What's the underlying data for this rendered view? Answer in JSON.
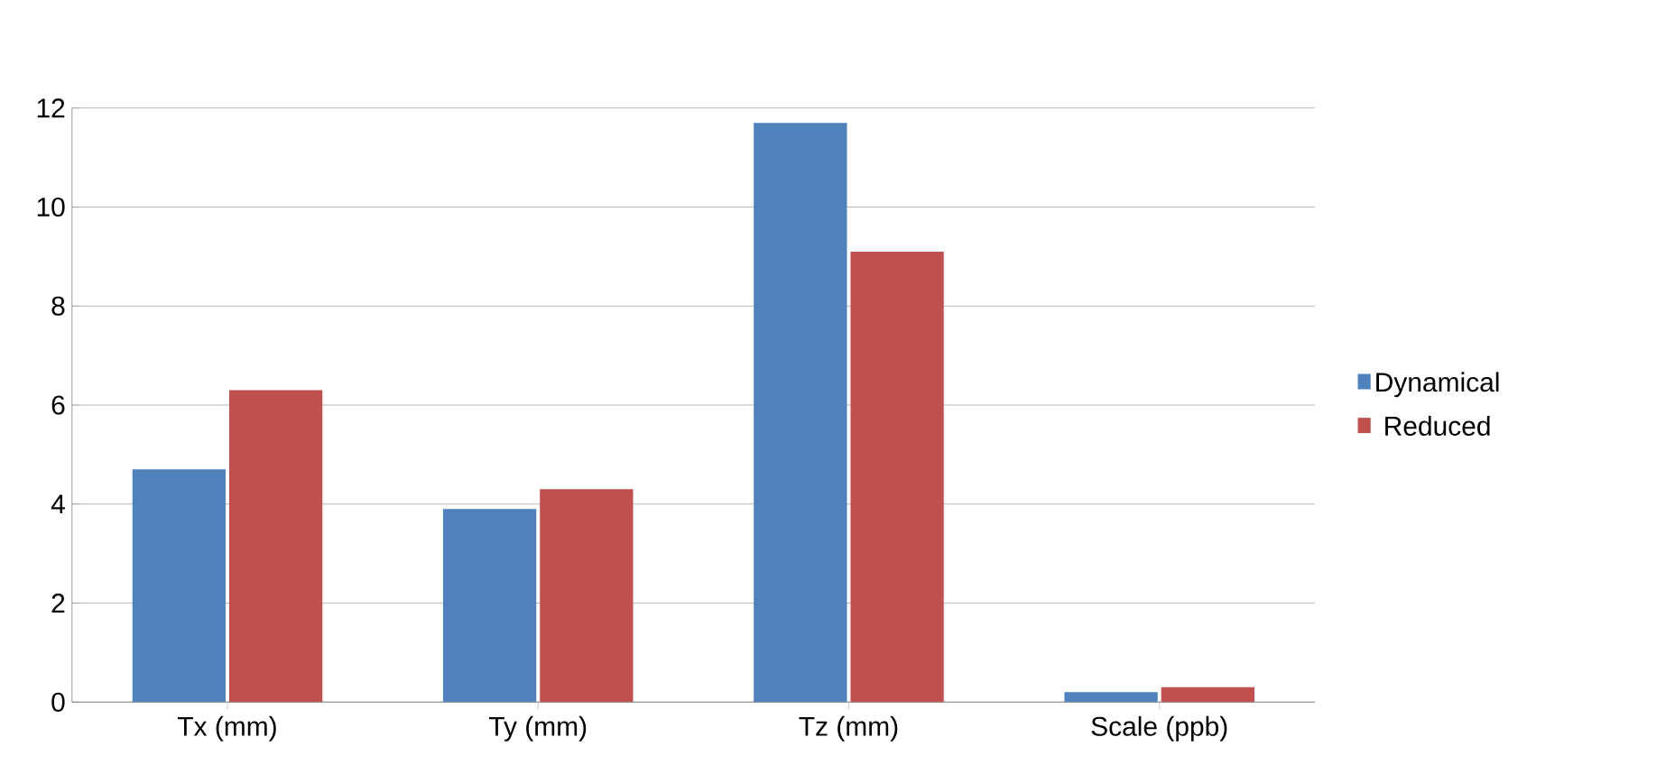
{
  "chart_data": {
    "type": "bar",
    "categories": [
      "Tx (mm)",
      "Ty (mm)",
      "Tz (mm)",
      "Scale (ppb)"
    ],
    "series": [
      {
        "name": "Dynamical",
        "color": "#4f81bd",
        "values": [
          4.7,
          3.9,
          11.7,
          0.2
        ]
      },
      {
        "name": "Reduced",
        "color": "#c0504d",
        "values": [
          6.3,
          4.3,
          9.1,
          0.3
        ]
      }
    ],
    "ylim": [
      0,
      12
    ],
    "yticks": [
      0,
      2,
      4,
      6,
      8,
      10,
      12
    ],
    "grid": "y",
    "legend": "right"
  }
}
